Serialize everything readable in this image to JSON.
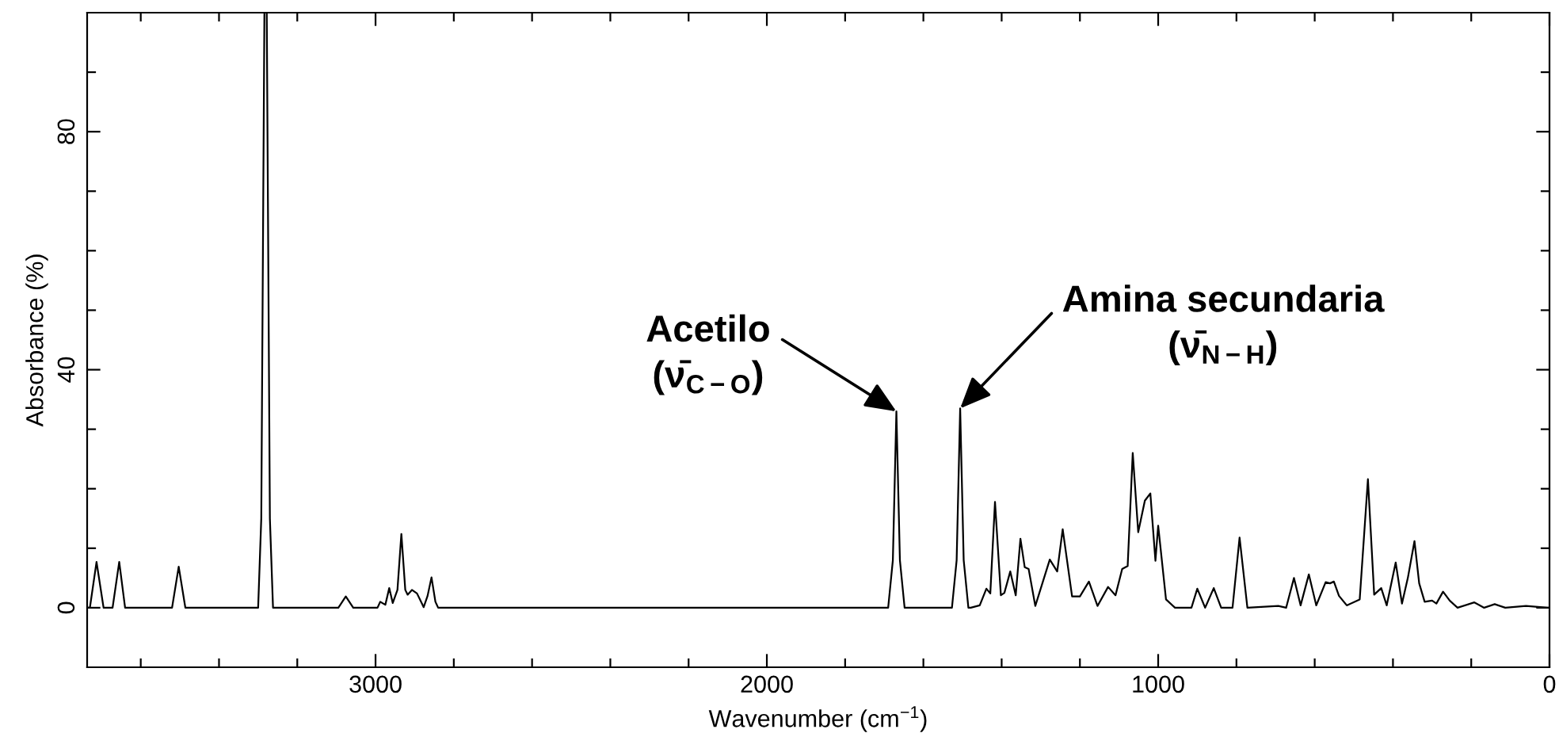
{
  "chart_data": {
    "type": "line",
    "xlabel": "Wavenumber (cm$^{−1}$)",
    "ylabel": "Absorbance (%)",
    "xlim": [
      3737,
      0
    ],
    "ylim": [
      -10,
      100
    ],
    "xticks": [
      0,
      {
        "value": 200,
        "label": null
      },
      {
        "value": 400,
        "label": null
      },
      {
        "value": 600,
        "label": null
      },
      {
        "value": 800,
        "label": null
      },
      1000,
      {
        "value": 1200,
        "label": null
      },
      {
        "value": 1400,
        "label": null
      },
      {
        "value": 1600,
        "label": null
      },
      {
        "value": 1800,
        "label": null
      },
      2000,
      {
        "value": 2200,
        "label": null
      },
      {
        "value": 2400,
        "label": null
      },
      {
        "value": 2600,
        "label": null
      },
      {
        "value": 2800,
        "label": null
      },
      3000,
      {
        "value": 3200,
        "label": null
      },
      {
        "value": 3400,
        "label": null
      },
      {
        "value": 3600,
        "label": null
      }
    ],
    "yticks": [
      0,
      {
        "value": 10,
        "label": null
      },
      {
        "value": 20,
        "label": null
      },
      {
        "value": 30,
        "label": null
      },
      40,
      {
        "value": 50,
        "label": null
      },
      {
        "value": 60,
        "label": null
      },
      {
        "value": 70,
        "label": null
      },
      80,
      {
        "value": 90,
        "label": null
      }
    ],
    "grid": false,
    "legend": false,
    "marker": "none",
    "line_style": "solid",
    "series": [
      {
        "color": "#000000",
        "x": [
          3737,
          3730,
          3713,
          3695,
          3672,
          3655,
          3640,
          3520,
          3503,
          3486,
          3300,
          3292,
          3284,
          3278,
          3270,
          3262,
          3095,
          3076,
          3057,
          2995,
          2988,
          2975,
          2965,
          2956,
          2944,
          2934,
          2924,
          2918,
          2907,
          2894,
          2877,
          2867,
          2857,
          2847,
          2840,
          1690,
          1678,
          1669,
          1660,
          1648,
          1527,
          1515,
          1506,
          1497,
          1485,
          1479,
          1456,
          1439,
          1429,
          1417,
          1402,
          1393,
          1378,
          1364,
          1352,
          1341,
          1331,
          1314,
          1277,
          1258,
          1244,
          1220,
          1200,
          1177,
          1155,
          1128,
          1109,
          1092,
          1078,
          1065,
          1051,
          1034,
          1020,
          1007,
          1000,
          980,
          957,
          915,
          900,
          880,
          858,
          839,
          810,
          792,
          772,
          693,
          673,
          653,
          636,
          615,
          596,
          572,
          561,
          551,
          538,
          518,
          485,
          464,
          448,
          430,
          416,
          393,
          377,
          362,
          345,
          333,
          319,
          300,
          289,
          272,
          255,
          235,
          192,
          167,
          140,
          113,
          60,
          5,
          0
        ],
        "values": [
          0,
          0,
          7.7,
          0,
          0,
          7.7,
          0,
          0,
          6.9,
          0,
          0,
          15,
          100,
          100,
          15,
          0,
          0,
          1.9,
          0,
          0,
          1,
          0.5,
          3.3,
          0.8,
          3,
          12.4,
          3,
          2.2,
          3,
          2.4,
          0.1,
          2,
          5.1,
          1,
          0,
          0,
          8,
          33,
          8,
          0,
          0,
          8,
          33.5,
          8,
          0,
          0,
          0.4,
          3.2,
          2.4,
          17.8,
          2.1,
          2.5,
          6.1,
          2.1,
          11.6,
          6.8,
          6.5,
          0.3,
          8.1,
          6.1,
          13.2,
          1.9,
          1.9,
          4.4,
          0.3,
          3.5,
          2.1,
          6.5,
          7,
          26,
          12.7,
          18,
          19.2,
          7.9,
          13.8,
          1.4,
          0,
          0,
          3.2,
          0,
          3.3,
          0,
          0,
          11.8,
          0,
          0.3,
          0,
          5,
          0.4,
          5.6,
          0.4,
          4.3,
          4.1,
          4.4,
          2,
          0.4,
          1.4,
          21.6,
          2.2,
          3.3,
          0.4,
          7.6,
          0.7,
          5,
          11.2,
          4.1,
          1,
          1.2,
          0.7,
          2.7,
          1.2,
          0,
          0.9,
          0,
          0.6,
          0,
          0.3,
          0,
          0
        ]
      }
    ],
    "annotations": [
      {
        "text": "Acetilo\n(ν̄$_{C−O}$)",
        "x": 1669,
        "y": 33
      },
      {
        "text": "Amina secundaria\n(ν̄$_{N−H}$)",
        "x": 1506,
        "y": 33.5
      }
    ]
  }
}
